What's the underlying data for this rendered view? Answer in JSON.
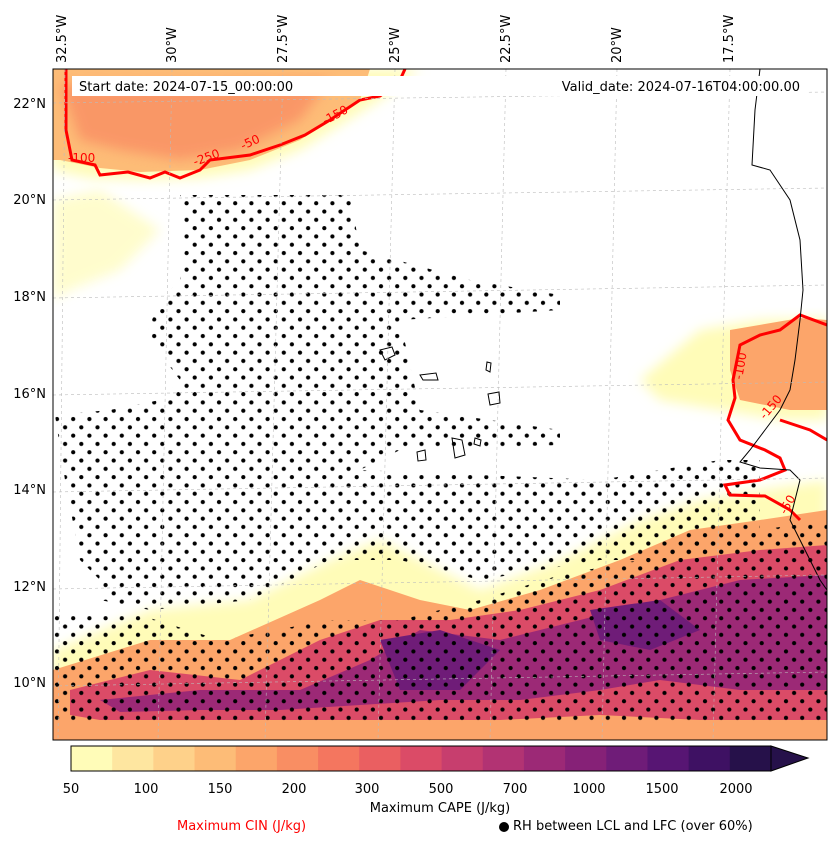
{
  "map": {
    "start_date": "Start date: 2024-07-15_00:00:00",
    "valid_date": "Valid_date: 2024-07-16T04:00:00.00",
    "lon_labels": [
      "32.5°W",
      "30°W",
      "27.5°W",
      "25°W",
      "22.5°W",
      "20°W",
      "17.5°W"
    ],
    "lat_labels": [
      "22°N",
      "20°N",
      "18°N",
      "16°N",
      "14°N",
      "12°N",
      "10°N"
    ],
    "cin_contour_labels": [
      "-100",
      "-250",
      "-50",
      "-150",
      "-100",
      "-150",
      "-50"
    ]
  },
  "colorbar": {
    "ticks": [
      "50",
      "100",
      "150",
      "200",
      "300",
      "500",
      "700",
      "1000",
      "1500",
      "2000"
    ],
    "label": "Maximum CAPE (J/kg)",
    "colors": [
      "#fffcb8",
      "#fee6a0",
      "#fed18a",
      "#fdbc77",
      "#fca56a",
      "#f98e63",
      "#f4765f",
      "#ea5f61",
      "#db4b67",
      "#c73e6e",
      "#b23373",
      "#9c2976",
      "#862177",
      "#6f1c78",
      "#571573",
      "#3e1163",
      "#26114a"
    ]
  },
  "legend": {
    "cin_label": "Maximum CIN (J/kg)",
    "cin_color": "#ff0000",
    "rh_label": "RH between LCL and LFC (over 60%)"
  }
}
